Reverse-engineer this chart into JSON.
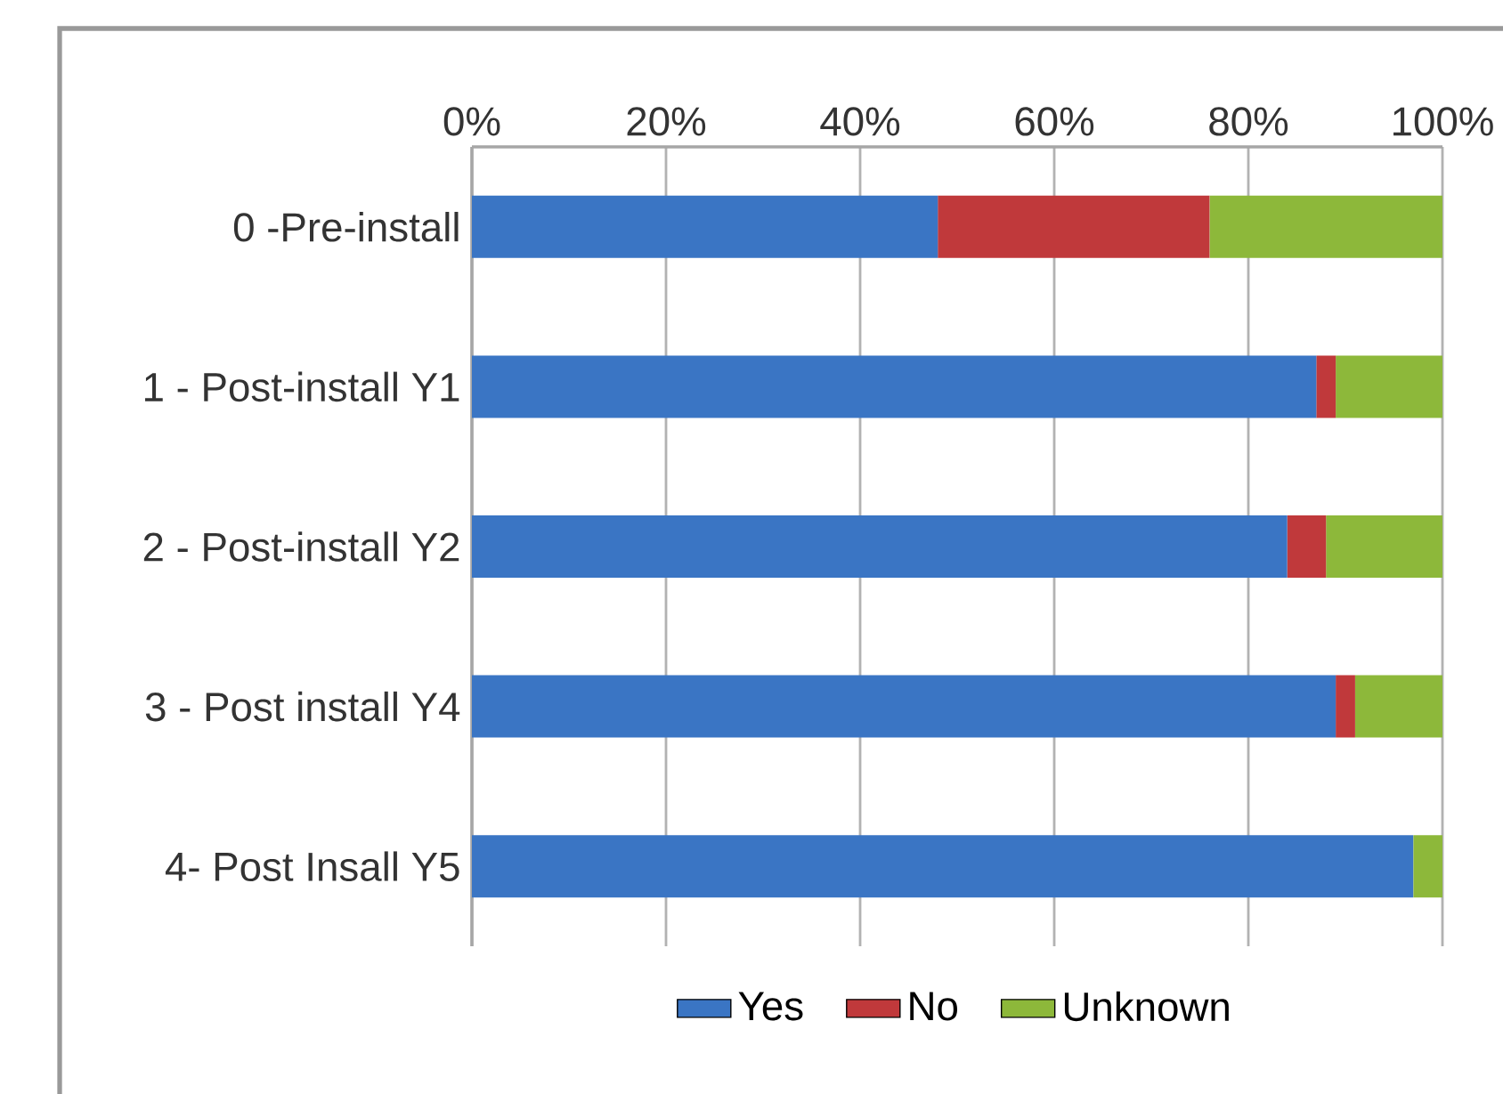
{
  "chart_data": {
    "type": "bar",
    "orientation": "horizontal",
    "stacked": true,
    "categories": [
      "0 -Pre-install",
      "1 - Post-install Y1",
      "2 - Post-install Y2",
      "3 - Post install Y4",
      "4- Post Insall Y5"
    ],
    "series": [
      {
        "name": "Yes",
        "color": "#3a75c4",
        "values": [
          48,
          87,
          84,
          89,
          97
        ]
      },
      {
        "name": "No",
        "color": "#c0393b",
        "values": [
          28,
          2,
          4,
          2,
          0
        ]
      },
      {
        "name": "Unknown",
        "color": "#8db83a",
        "values": [
          24,
          11,
          12,
          9,
          3
        ]
      }
    ],
    "xlim": [
      0,
      100
    ],
    "xticks": [
      {
        "value": 0,
        "label": "0%"
      },
      {
        "value": 20,
        "label": "20%"
      },
      {
        "value": 40,
        "label": "40%"
      },
      {
        "value": 60,
        "label": "60%"
      },
      {
        "value": 80,
        "label": "80%"
      },
      {
        "value": 100,
        "label": "100%"
      }
    ],
    "grid": "x",
    "legend": "bottom"
  }
}
